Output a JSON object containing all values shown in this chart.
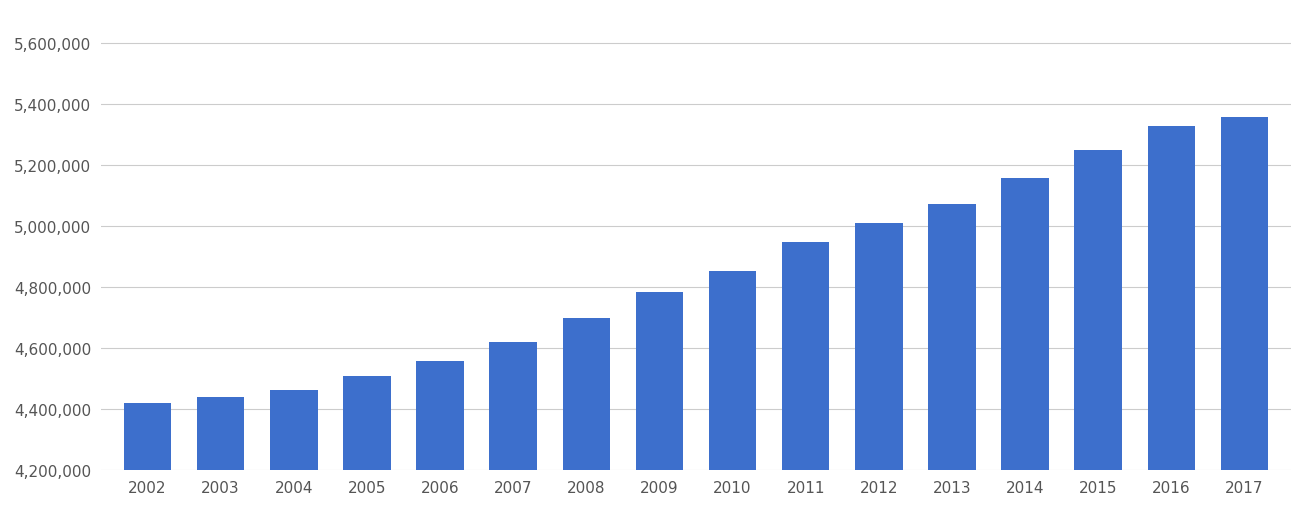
{
  "years": [
    2002,
    2003,
    2004,
    2005,
    2006,
    2007,
    2008,
    2009,
    2010,
    2011,
    2012,
    2013,
    2014,
    2015,
    2016,
    2017
  ],
  "values": [
    4420000,
    4440000,
    4465000,
    4510000,
    4560000,
    4620000,
    4700000,
    4785000,
    4855000,
    4950000,
    5010000,
    5075000,
    5160000,
    5250000,
    5330000,
    5360000
  ],
  "bar_color": "#3d6fcc",
  "background_color": "#ffffff",
  "grid_color": "#cccccc",
  "tick_color": "#555555",
  "ylim_min": 4200000,
  "ylim_max": 5700000,
  "ytick_step": 200000,
  "bar_width": 0.65
}
